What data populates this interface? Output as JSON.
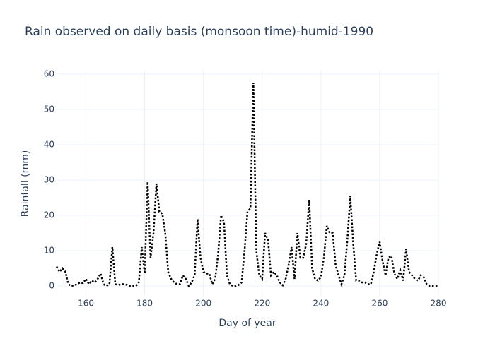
{
  "chart_data": {
    "type": "line",
    "title": "Rain observed on daily basis (monsoon time)-humid-1990",
    "x_label": "Day of year",
    "y_label": "Rainfall (mm)",
    "x": [
      150,
      151,
      152,
      153,
      154,
      155,
      156,
      157,
      158,
      159,
      160,
      161,
      162,
      163,
      164,
      165,
      166,
      167,
      168,
      169,
      170,
      171,
      172,
      173,
      174,
      175,
      176,
      177,
      178,
      179,
      180,
      181,
      182,
      183,
      184,
      185,
      186,
      187,
      188,
      189,
      190,
      191,
      192,
      193,
      194,
      195,
      196,
      197,
      198,
      199,
      200,
      201,
      202,
      203,
      204,
      205,
      206,
      207,
      208,
      209,
      210,
      211,
      212,
      213,
      214,
      215,
      216,
      217,
      218,
      219,
      220,
      221,
      222,
      223,
      224,
      225,
      226,
      227,
      228,
      229,
      230,
      231,
      232,
      233,
      234,
      235,
      236,
      237,
      238,
      239,
      240,
      241,
      242,
      243,
      244,
      245,
      246,
      247,
      248,
      249,
      250,
      251,
      252,
      253,
      254,
      255,
      256,
      257,
      258,
      259,
      260,
      261,
      262,
      263,
      264,
      265,
      266,
      267,
      268,
      269,
      270,
      271,
      272,
      273,
      274,
      275,
      276,
      277,
      278,
      279,
      280
    ],
    "values": [
      5.5,
      4,
      5,
      4,
      0.5,
      0,
      0.2,
      0.5,
      1,
      0.8,
      2,
      0.5,
      1.5,
      1,
      2,
      3.5,
      0.5,
      0,
      0.5,
      11,
      0.5,
      0.3,
      0.5,
      0.5,
      0.3,
      0,
      0,
      0,
      1,
      11,
      3.5,
      29.5,
      8,
      15,
      29,
      21,
      20.5,
      15,
      4,
      2,
      1,
      0.5,
      0.5,
      3,
      2,
      0,
      1,
      3,
      19,
      8,
      4,
      3.5,
      3.5,
      0.5,
      2,
      9,
      20,
      18,
      3,
      0.5,
      0,
      0,
      0.3,
      1,
      10,
      21,
      22,
      57.5,
      10,
      3,
      2,
      15,
      13,
      3,
      4,
      3,
      1,
      0.2,
      2,
      6,
      11,
      2,
      15,
      8,
      8,
      12,
      24.5,
      5,
      2,
      1.5,
      2.5,
      8,
      17,
      15,
      15,
      6,
      3,
      0.5,
      3,
      13,
      25.5,
      12,
      1.5,
      1.5,
      1,
      1,
      0.5,
      0.5,
      4,
      9,
      12.5,
      7,
      3,
      8,
      8.5,
      3.5,
      2,
      4.5,
      1.5,
      10.5,
      4,
      3,
      2,
      1.5,
      3,
      2.5,
      0.5,
      0,
      0,
      0,
      0
    ],
    "color": "#000000",
    "dash": "dot",
    "xlim": [
      150,
      280
    ],
    "xticks": [
      160,
      180,
      200,
      220,
      240,
      260,
      280
    ],
    "ylim": [
      -3,
      61
    ],
    "yticks": [
      0,
      10,
      20,
      30,
      40,
      50,
      60
    ],
    "grid": true
  }
}
